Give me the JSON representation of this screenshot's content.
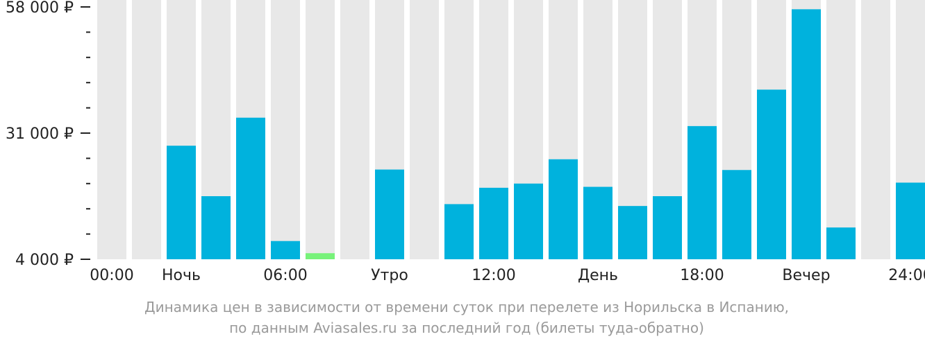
{
  "chart_data": {
    "type": "bar",
    "ylim": [
      4000,
      58000
    ],
    "y_ticks": [
      {
        "value": 4000,
        "label": "4 000 ₽"
      },
      {
        "value": 31000,
        "label": "31 000 ₽"
      },
      {
        "value": 58000,
        "label": "58 000 ₽"
      }
    ],
    "minor_ticks": [
      9400,
      14800,
      20200,
      25600,
      36400,
      41800,
      47200,
      52600
    ],
    "x_labels": [
      {
        "slot": 0,
        "label": "00:00"
      },
      {
        "slot": 2,
        "label": "Ночь"
      },
      {
        "slot": 5,
        "label": "06:00"
      },
      {
        "slot": 8,
        "label": "Утро"
      },
      {
        "slot": 11,
        "label": "12:00"
      },
      {
        "slot": 14,
        "label": "День"
      },
      {
        "slot": 17,
        "label": "18:00"
      },
      {
        "slot": 20,
        "label": "Вечер"
      },
      {
        "slot": 23,
        "label": "24:00"
      }
    ],
    "hours": [
      0,
      1,
      2,
      3,
      4,
      5,
      6,
      7,
      8,
      9,
      10,
      11,
      12,
      13,
      14,
      15,
      16,
      17,
      18,
      19,
      20,
      21,
      22,
      23
    ],
    "values": [
      null,
      null,
      28300,
      17500,
      34300,
      7900,
      5300,
      null,
      23200,
      null,
      15800,
      19300,
      20200,
      25400,
      19500,
      15400,
      17500,
      32500,
      23100,
      40300,
      57500,
      10800,
      null,
      20400
    ],
    "cheapest_index": 6,
    "colors": {
      "background_column": "#e8e8e8",
      "bar": "#00b2dd",
      "cheapest_bar": "#77f27a"
    }
  },
  "caption": {
    "line1": "Динамика цен в зависимости от времени суток при перелете из Норильска в Испанию,",
    "line2": "по данным Aviasales.ru за последний год (билеты туда-обратно)"
  }
}
